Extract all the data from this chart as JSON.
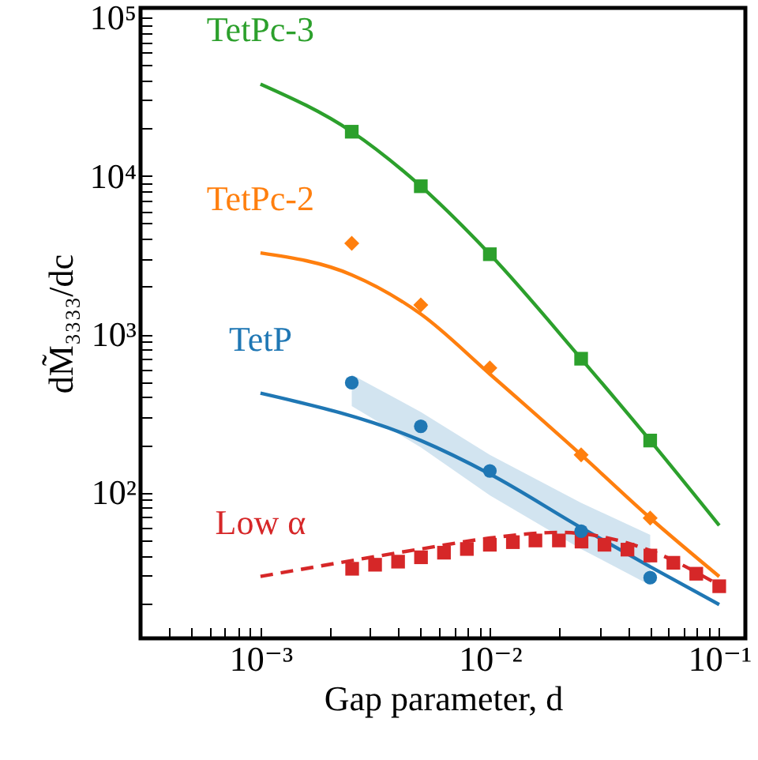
{
  "chart_data": {
    "type": "line",
    "xlabel": "Gap parameter, d",
    "ylabel": "dM̃₃₃₃₃/dc",
    "log": "xy",
    "xlim": [
      0.0003,
      0.13
    ],
    "ylim": [
      12,
      115000
    ],
    "xticks": [
      {
        "value": 0.0004,
        "label": null
      },
      {
        "value": 0.0005,
        "label": null
      },
      {
        "value": 0.0006,
        "label": null
      },
      {
        "value": 0.0007,
        "label": null
      },
      {
        "value": 0.0008,
        "label": null
      },
      {
        "value": 0.0009,
        "label": null
      },
      {
        "value": 0.001,
        "label": "10⁻³"
      },
      {
        "value": 0.002,
        "label": null
      },
      {
        "value": 0.003,
        "label": null
      },
      {
        "value": 0.004,
        "label": null
      },
      {
        "value": 0.005,
        "label": null
      },
      {
        "value": 0.006,
        "label": null
      },
      {
        "value": 0.007,
        "label": null
      },
      {
        "value": 0.008,
        "label": null
      },
      {
        "value": 0.009,
        "label": null
      },
      {
        "value": 0.01,
        "label": "10⁻²"
      },
      {
        "value": 0.02,
        "label": null
      },
      {
        "value": 0.03,
        "label": null
      },
      {
        "value": 0.04,
        "label": null
      },
      {
        "value": 0.05,
        "label": null
      },
      {
        "value": 0.06,
        "label": null
      },
      {
        "value": 0.07,
        "label": null
      },
      {
        "value": 0.08,
        "label": null
      },
      {
        "value": 0.09,
        "label": null
      },
      {
        "value": 0.1,
        "label": "10⁻¹"
      }
    ],
    "yticks": [
      {
        "value": 20,
        "label": null
      },
      {
        "value": 30,
        "label": null
      },
      {
        "value": 40,
        "label": null
      },
      {
        "value": 50,
        "label": null
      },
      {
        "value": 60,
        "label": null
      },
      {
        "value": 70,
        "label": null
      },
      {
        "value": 80,
        "label": null
      },
      {
        "value": 90,
        "label": null
      },
      {
        "value": 100,
        "label": "10²"
      },
      {
        "value": 200,
        "label": null
      },
      {
        "value": 300,
        "label": null
      },
      {
        "value": 400,
        "label": null
      },
      {
        "value": 500,
        "label": null
      },
      {
        "value": 600,
        "label": null
      },
      {
        "value": 700,
        "label": null
      },
      {
        "value": 800,
        "label": null
      },
      {
        "value": 900,
        "label": null
      },
      {
        "value": 1000,
        "label": "10³"
      },
      {
        "value": 2000,
        "label": null
      },
      {
        "value": 3000,
        "label": null
      },
      {
        "value": 4000,
        "label": null
      },
      {
        "value": 5000,
        "label": null
      },
      {
        "value": 6000,
        "label": null
      },
      {
        "value": 7000,
        "label": null
      },
      {
        "value": 8000,
        "label": null
      },
      {
        "value": 9000,
        "label": null
      },
      {
        "value": 10000,
        "label": "10⁴"
      },
      {
        "value": 20000,
        "label": null
      },
      {
        "value": 30000,
        "label": null
      },
      {
        "value": 40000,
        "label": null
      },
      {
        "value": 50000,
        "label": null
      },
      {
        "value": 60000,
        "label": null
      },
      {
        "value": 70000,
        "label": null
      },
      {
        "value": 80000,
        "label": null
      },
      {
        "value": 90000,
        "label": null
      },
      {
        "value": 100000,
        "label": "10⁵"
      }
    ],
    "series": [
      {
        "name": "TetPc-3",
        "color": "#2ca02c",
        "line_style": "solid",
        "x": [
          0.001,
          0.0025,
          0.005,
          0.01,
          0.025,
          0.05,
          0.1
        ],
        "values": [
          38000,
          19000,
          8600,
          3200,
          700,
          213,
          62
        ]
      },
      {
        "type": "scatter",
        "color": "#2ca02c",
        "marker": "square",
        "x": [
          0.0025,
          0.005,
          0.01,
          0.025,
          0.05
        ],
        "values": [
          19000,
          8600,
          3200,
          700,
          213
        ]
      },
      {
        "name": "TetPc-2",
        "color": "#ff7f0e",
        "line_style": "solid",
        "x": [
          0.001,
          0.0025,
          0.005,
          0.01,
          0.025,
          0.05,
          0.1
        ],
        "values": [
          3260,
          2370,
          1340,
          560,
          173,
          69,
          29.5
        ]
      },
      {
        "type": "scatter",
        "color": "#ff7f0e",
        "marker": "diamond",
        "x": [
          0.0025,
          0.005,
          0.01,
          0.025,
          0.05
        ],
        "values": [
          3750,
          1530,
          612,
          173,
          69
        ]
      },
      {
        "name": "TetP",
        "color": "#1f77b4",
        "line_style": "solid",
        "x": [
          0.001,
          0.005,
          0.01,
          0.025,
          0.05,
          0.1
        ],
        "values": [
          424,
          213,
          131,
          60,
          34,
          19.6
        ]
      },
      {
        "name": "Low α",
        "color": "#d62728",
        "line_style": "dashed",
        "x": [
          0.001,
          0.005,
          0.01,
          0.02,
          0.05,
          0.1
        ],
        "values": [
          29.5,
          44,
          51.6,
          56,
          43,
          26
        ]
      },
      {
        "type": "scatter",
        "color": "#d62728",
        "marker": "square",
        "x": [
          0.00251,
          0.00316,
          0.00398,
          0.00501,
          0.00631,
          0.00794,
          0.01,
          0.0126,
          0.0158,
          0.02,
          0.0251,
          0.0316,
          0.0398,
          0.0501,
          0.0631,
          0.0794,
          0.1
        ],
        "values": [
          33,
          35,
          36.6,
          39,
          41.7,
          44,
          46.8,
          48.6,
          49.8,
          49.8,
          49,
          46.8,
          43.6,
          40,
          36,
          30.7,
          25.6
        ]
      },
      {
        "type": "scatter",
        "color": "#1f77b4",
        "marker": "circle",
        "x": [
          0.0025,
          0.005,
          0.01,
          0.025,
          0.05
        ],
        "values": [
          494,
          262,
          137,
          57,
          29
        ],
        "lower": [
          352,
          193,
          96,
          44,
          26
        ],
        "upper": [
          555,
          323,
          173,
          86,
          54
        ]
      }
    ]
  }
}
